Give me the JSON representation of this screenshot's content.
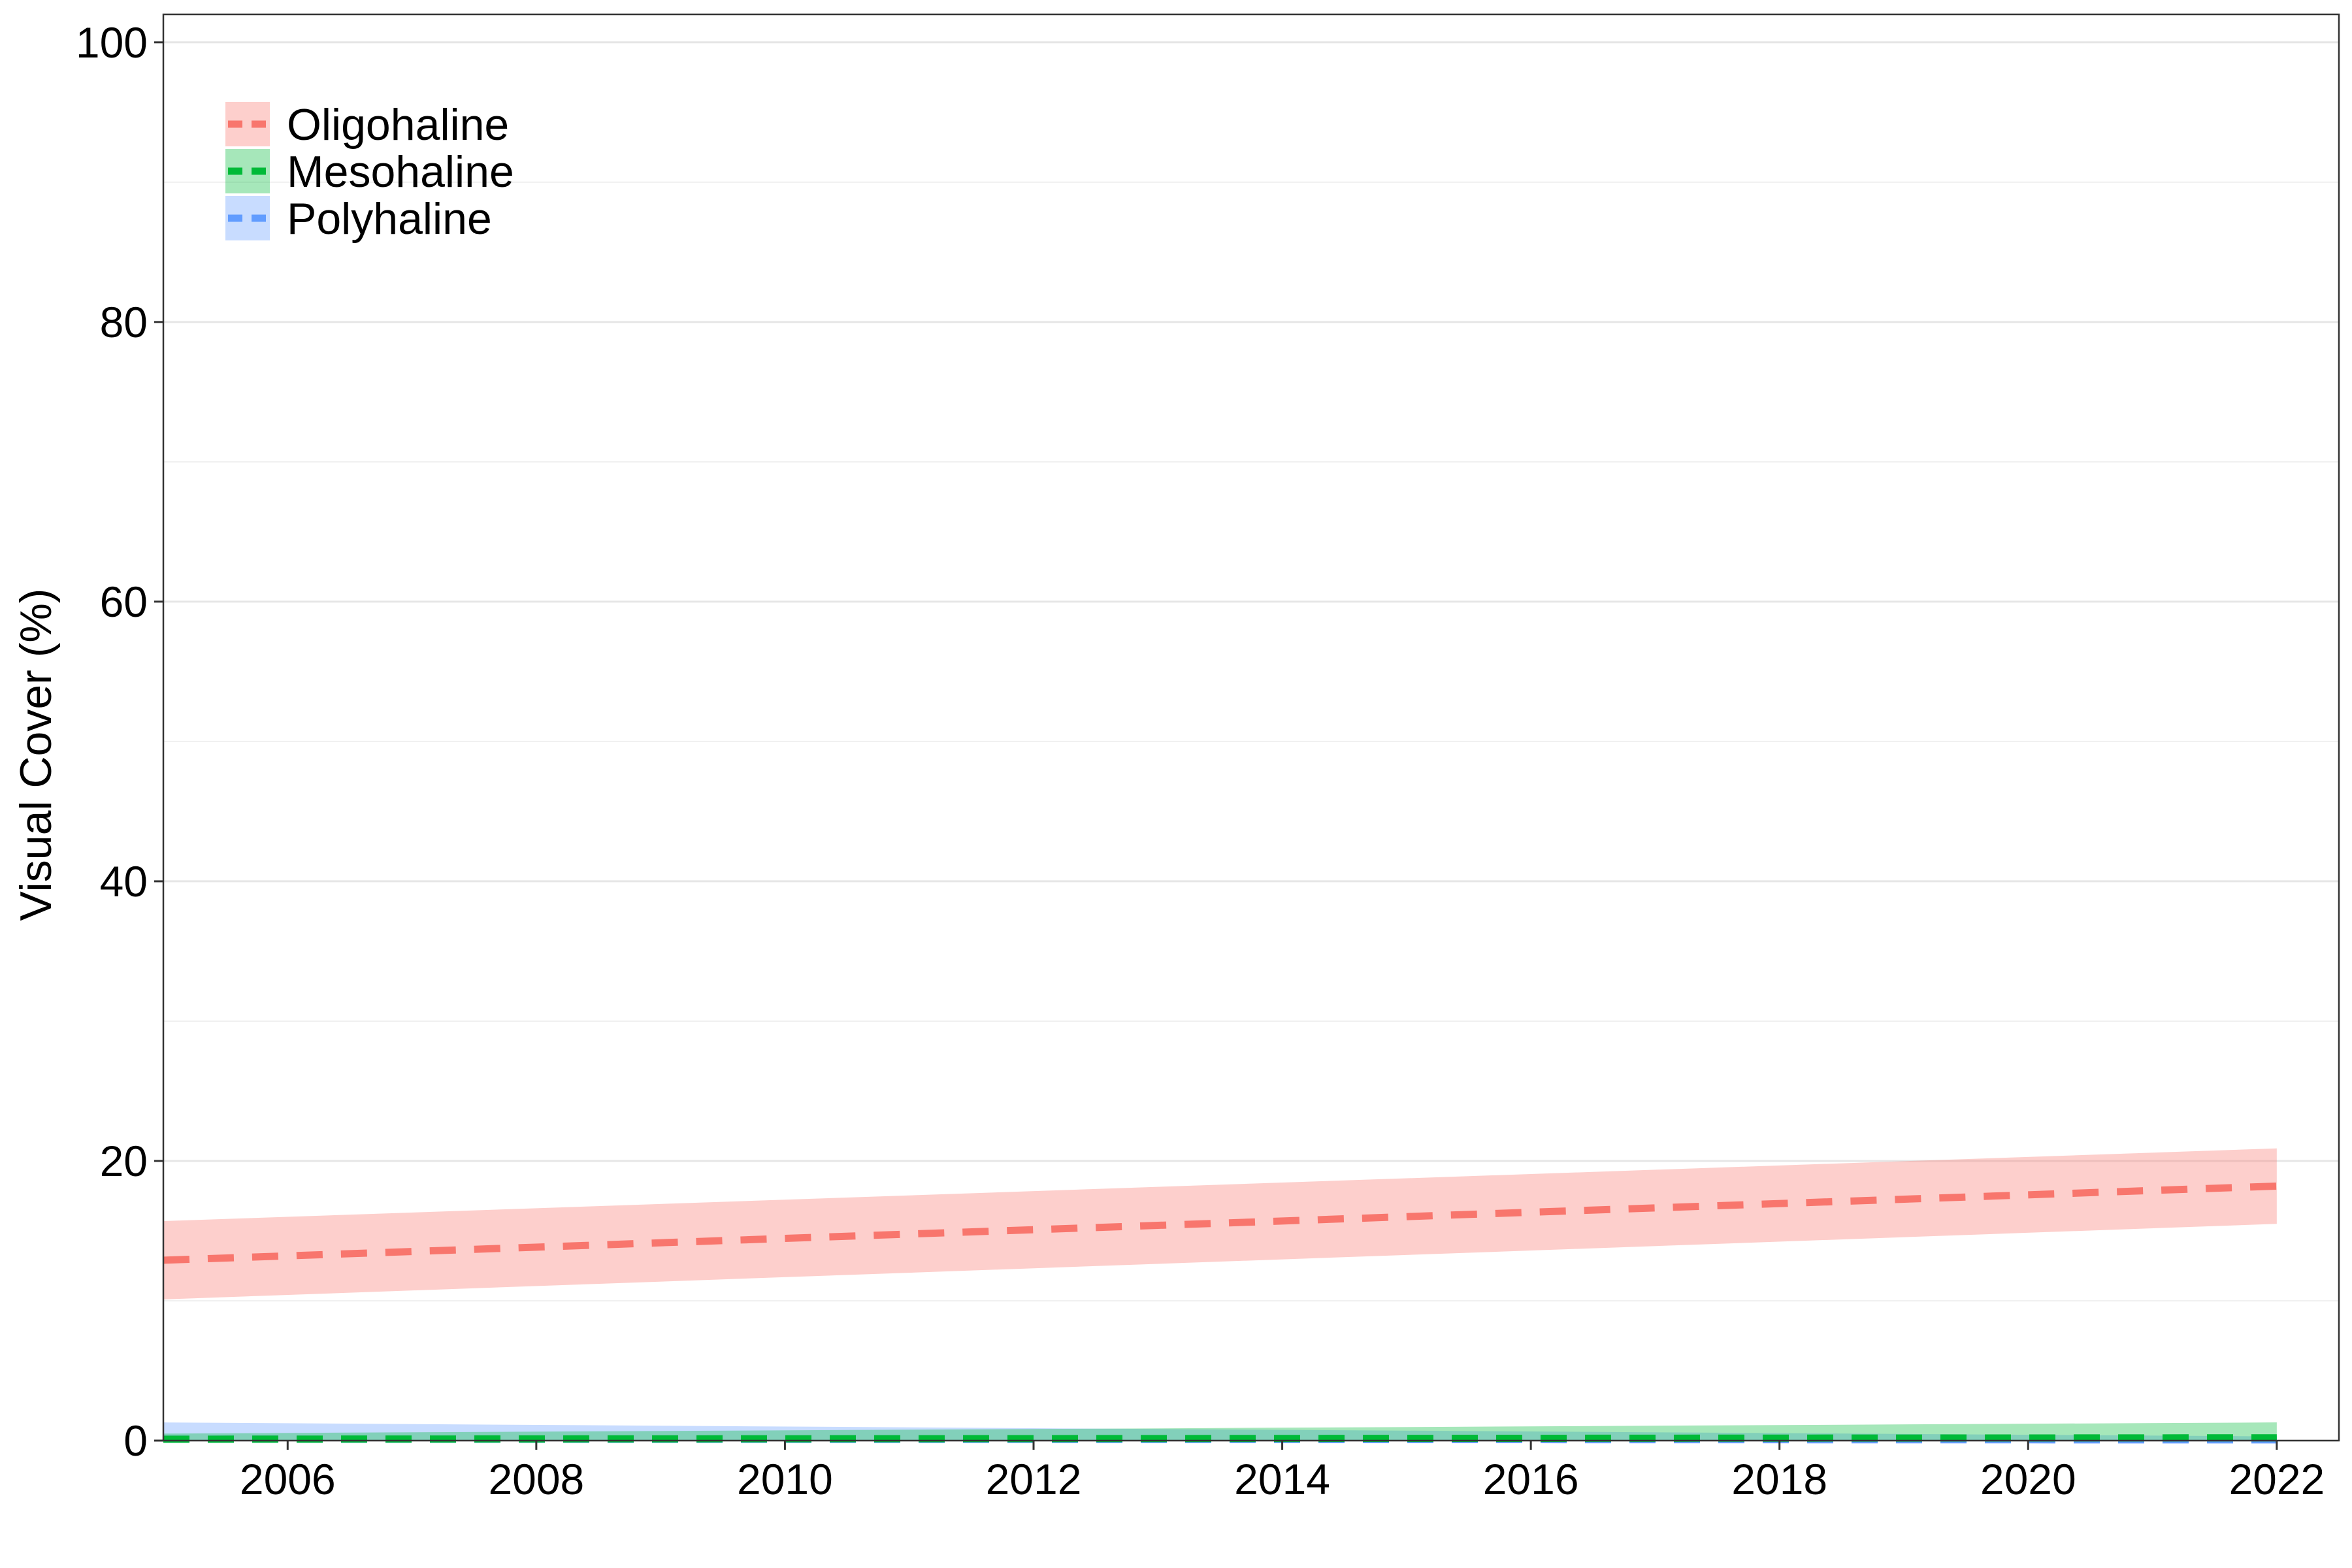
{
  "chart_data": {
    "type": "line",
    "title": "",
    "xlabel": "",
    "ylabel": "Visual Cover (%)",
    "xlim": [
      2005,
      2022.5
    ],
    "ylim": [
      0,
      102
    ],
    "x_ticks": [
      2006,
      2008,
      2010,
      2012,
      2014,
      2016,
      2018,
      2020,
      2022
    ],
    "y_ticks": [
      0,
      20,
      40,
      60,
      80,
      100
    ],
    "grid": "horizontal major and minor",
    "legend_position": "top-left",
    "series": [
      {
        "name": "Oligohaline",
        "color": "#F8766D",
        "line_style": "dashed",
        "x": [
          2005,
          2022
        ],
        "y": [
          12.9,
          18.2
        ],
        "y_lower": [
          10.1,
          15.5
        ],
        "y_upper": [
          15.7,
          20.9
        ]
      },
      {
        "name": "Mesohaline",
        "color": "#00BA38",
        "line_style": "dashed",
        "x": [
          2005,
          2022
        ],
        "y": [
          0.1,
          0.2
        ],
        "y_lower": [
          0.0,
          0.0
        ],
        "y_upper": [
          0.5,
          1.3
        ]
      },
      {
        "name": "Polyhaline",
        "color": "#619CFF",
        "line_style": "dashed",
        "x": [
          2005,
          2022
        ],
        "y": [
          0.1,
          0.05
        ],
        "y_lower": [
          0.0,
          0.0
        ],
        "y_upper": [
          1.3,
          0.3
        ]
      }
    ]
  }
}
